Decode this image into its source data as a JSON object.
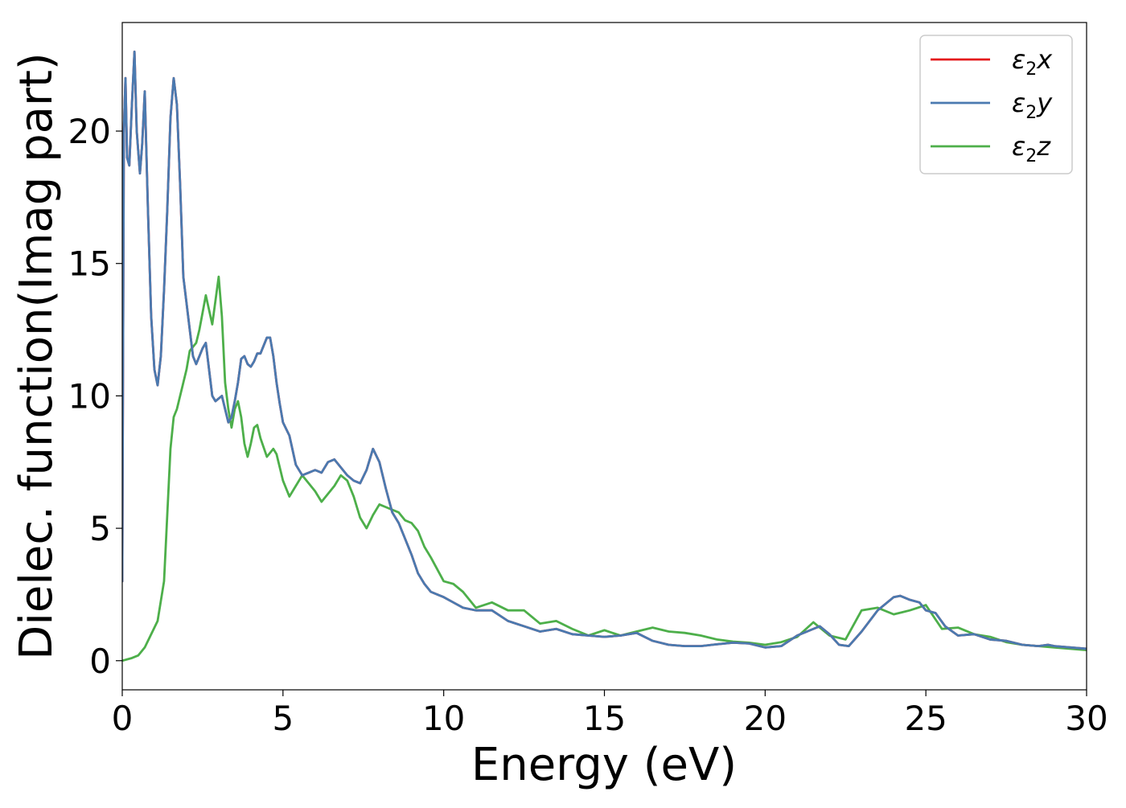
{
  "chart_data": {
    "type": "line",
    "title": "",
    "xlabel": "Energy (eV)",
    "ylabel": "Dielec. function(Imag part)",
    "xlim": [
      0,
      30
    ],
    "ylim": [
      -1.1,
      24.1
    ],
    "xticks": [
      0,
      5,
      10,
      15,
      20,
      25,
      30
    ],
    "yticks": [
      0,
      5,
      10,
      15,
      20
    ],
    "grid": false,
    "legend_position": "top-right",
    "series": [
      {
        "name": "ε₂x",
        "legend_base": "ε",
        "legend_sub": "2",
        "legend_var": "x",
        "color": "#e41a1c",
        "x": [
          0,
          0.05,
          0.1,
          0.15,
          0.22,
          0.3,
          0.38,
          0.45,
          0.55,
          0.62,
          0.7,
          0.8,
          0.9,
          1.0,
          1.1,
          1.2,
          1.3,
          1.4,
          1.5,
          1.6,
          1.7,
          1.8,
          1.9,
          2.0,
          2.1,
          2.2,
          2.3,
          2.4,
          2.5,
          2.6,
          2.7,
          2.8,
          2.9,
          3.0,
          3.1,
          3.2,
          3.3,
          3.4,
          3.5,
          3.6,
          3.7,
          3.8,
          3.9,
          4.0,
          4.1,
          4.2,
          4.3,
          4.4,
          4.5,
          4.6,
          4.7,
          4.8,
          4.9,
          5.0,
          5.2,
          5.4,
          5.6,
          5.8,
          6.0,
          6.2,
          6.4,
          6.6,
          6.8,
          7.0,
          7.2,
          7.4,
          7.6,
          7.7,
          7.8,
          8.0,
          8.2,
          8.4,
          8.6,
          8.8,
          9.0,
          9.2,
          9.4,
          9.6,
          9.8,
          10.0,
          10.3,
          10.6,
          11.0,
          11.5,
          12.0,
          12.5,
          13.0,
          13.5,
          14.0,
          14.5,
          15.0,
          15.5,
          16.0,
          16.5,
          17.0,
          17.5,
          18.0,
          18.5,
          19.0,
          19.5,
          20.0,
          20.5,
          21.0,
          21.5,
          21.7,
          22.0,
          22.3,
          22.6,
          23.0,
          23.5,
          24.0,
          24.2,
          24.5,
          24.8,
          25.0,
          25.3,
          25.6,
          26.0,
          26.5,
          27.0,
          27.5,
          28.0,
          28.5,
          28.8,
          29.0,
          29.5,
          30.0
        ],
        "values": [
          3.0,
          20.0,
          22.0,
          19.0,
          18.7,
          21.0,
          23.0,
          20.0,
          18.4,
          19.5,
          21.5,
          17.0,
          13.0,
          11.0,
          10.4,
          11.5,
          14.0,
          17.0,
          20.5,
          22.0,
          21.0,
          18.0,
          14.5,
          13.5,
          12.5,
          11.5,
          11.2,
          11.5,
          11.8,
          12.0,
          11.0,
          10.0,
          9.8,
          9.9,
          10.0,
          9.5,
          9.0,
          9.2,
          9.8,
          10.5,
          11.4,
          11.5,
          11.2,
          11.1,
          11.3,
          11.6,
          11.6,
          11.9,
          12.2,
          12.2,
          11.5,
          10.5,
          9.7,
          9.0,
          8.5,
          7.4,
          7.0,
          7.1,
          7.2,
          7.1,
          7.5,
          7.6,
          7.3,
          7.0,
          6.8,
          6.7,
          7.2,
          7.6,
          8.0,
          7.5,
          6.5,
          5.6,
          5.2,
          4.6,
          4.0,
          3.3,
          2.9,
          2.6,
          2.5,
          2.4,
          2.2,
          2.0,
          1.9,
          1.9,
          1.5,
          1.3,
          1.1,
          1.2,
          1.0,
          0.95,
          0.9,
          0.95,
          1.05,
          0.75,
          0.6,
          0.55,
          0.55,
          0.62,
          0.68,
          0.65,
          0.5,
          0.55,
          0.95,
          1.2,
          1.3,
          1.0,
          0.6,
          0.55,
          1.1,
          1.9,
          2.4,
          2.45,
          2.3,
          2.2,
          1.9,
          1.8,
          1.3,
          0.95,
          1.0,
          0.8,
          0.75,
          0.6,
          0.55,
          0.6,
          0.55,
          0.5,
          0.45
        ]
      },
      {
        "name": "ε₂y",
        "legend_base": "ε",
        "legend_sub": "2",
        "legend_var": "y",
        "color": "#4a7ab0",
        "x": [
          0,
          0.05,
          0.1,
          0.15,
          0.22,
          0.3,
          0.38,
          0.45,
          0.55,
          0.62,
          0.7,
          0.8,
          0.9,
          1.0,
          1.1,
          1.2,
          1.3,
          1.4,
          1.5,
          1.6,
          1.7,
          1.8,
          1.9,
          2.0,
          2.1,
          2.2,
          2.3,
          2.4,
          2.5,
          2.6,
          2.7,
          2.8,
          2.9,
          3.0,
          3.1,
          3.2,
          3.3,
          3.4,
          3.5,
          3.6,
          3.7,
          3.8,
          3.9,
          4.0,
          4.1,
          4.2,
          4.3,
          4.4,
          4.5,
          4.6,
          4.7,
          4.8,
          4.9,
          5.0,
          5.2,
          5.4,
          5.6,
          5.8,
          6.0,
          6.2,
          6.4,
          6.6,
          6.8,
          7.0,
          7.2,
          7.4,
          7.6,
          7.7,
          7.8,
          8.0,
          8.2,
          8.4,
          8.6,
          8.8,
          9.0,
          9.2,
          9.4,
          9.6,
          9.8,
          10.0,
          10.3,
          10.6,
          11.0,
          11.5,
          12.0,
          12.5,
          13.0,
          13.5,
          14.0,
          14.5,
          15.0,
          15.5,
          16.0,
          16.5,
          17.0,
          17.5,
          18.0,
          18.5,
          19.0,
          19.5,
          20.0,
          20.5,
          21.0,
          21.5,
          21.7,
          22.0,
          22.3,
          22.6,
          23.0,
          23.5,
          24.0,
          24.2,
          24.5,
          24.8,
          25.0,
          25.3,
          25.6,
          26.0,
          26.5,
          27.0,
          27.5,
          28.0,
          28.5,
          28.8,
          29.0,
          29.5,
          30.0
        ],
        "values": [
          3.0,
          20.0,
          22.0,
          19.0,
          18.7,
          21.0,
          23.0,
          20.0,
          18.4,
          19.5,
          21.5,
          17.0,
          13.0,
          11.0,
          10.4,
          11.5,
          14.0,
          17.0,
          20.5,
          22.0,
          21.0,
          18.0,
          14.5,
          13.5,
          12.5,
          11.5,
          11.2,
          11.5,
          11.8,
          12.0,
          11.0,
          10.0,
          9.8,
          9.9,
          10.0,
          9.5,
          9.0,
          9.2,
          9.8,
          10.5,
          11.4,
          11.5,
          11.2,
          11.1,
          11.3,
          11.6,
          11.6,
          11.9,
          12.2,
          12.2,
          11.5,
          10.5,
          9.7,
          9.0,
          8.5,
          7.4,
          7.0,
          7.1,
          7.2,
          7.1,
          7.5,
          7.6,
          7.3,
          7.0,
          6.8,
          6.7,
          7.2,
          7.6,
          8.0,
          7.5,
          6.5,
          5.6,
          5.2,
          4.6,
          4.0,
          3.3,
          2.9,
          2.6,
          2.5,
          2.4,
          2.2,
          2.0,
          1.9,
          1.9,
          1.5,
          1.3,
          1.1,
          1.2,
          1.0,
          0.95,
          0.9,
          0.95,
          1.05,
          0.75,
          0.6,
          0.55,
          0.55,
          0.62,
          0.68,
          0.65,
          0.5,
          0.55,
          0.95,
          1.2,
          1.3,
          1.0,
          0.6,
          0.55,
          1.1,
          1.9,
          2.4,
          2.45,
          2.3,
          2.2,
          1.9,
          1.8,
          1.3,
          0.95,
          1.0,
          0.8,
          0.75,
          0.6,
          0.55,
          0.6,
          0.55,
          0.5,
          0.45
        ]
      },
      {
        "name": "ε₂z",
        "legend_base": "ε",
        "legend_sub": "2",
        "legend_var": "z",
        "color": "#4daf4a",
        "x": [
          0,
          0.3,
          0.5,
          0.7,
          0.9,
          1.1,
          1.3,
          1.5,
          1.6,
          1.7,
          1.9,
          2.0,
          2.1,
          2.3,
          2.4,
          2.6,
          2.8,
          3.0,
          3.1,
          3.2,
          3.3,
          3.4,
          3.5,
          3.6,
          3.7,
          3.8,
          3.9,
          4.0,
          4.1,
          4.2,
          4.3,
          4.5,
          4.7,
          4.8,
          5.0,
          5.2,
          5.4,
          5.6,
          5.8,
          6.0,
          6.2,
          6.4,
          6.6,
          6.8,
          7.0,
          7.2,
          7.4,
          7.6,
          7.8,
          8.0,
          8.2,
          8.4,
          8.6,
          8.8,
          9.0,
          9.2,
          9.4,
          9.6,
          10.0,
          10.3,
          10.6,
          11.0,
          11.5,
          12.0,
          12.5,
          13.0,
          13.5,
          14.0,
          14.5,
          15.0,
          15.5,
          16.0,
          16.5,
          17.0,
          17.5,
          18.0,
          18.5,
          19.0,
          19.5,
          20.0,
          20.5,
          21.0,
          21.5,
          22.0,
          22.5,
          23.0,
          23.5,
          24.0,
          24.5,
          25.0,
          25.5,
          26.0,
          26.5,
          27.0,
          27.5,
          28.0,
          28.5,
          29.0,
          29.5,
          30.0
        ],
        "values": [
          0.0,
          0.1,
          0.2,
          0.5,
          1.0,
          1.5,
          3.0,
          8.0,
          9.2,
          9.5,
          10.5,
          11.0,
          11.7,
          12.0,
          12.5,
          13.8,
          12.7,
          14.5,
          13.0,
          10.5,
          9.5,
          8.8,
          9.5,
          9.8,
          9.2,
          8.2,
          7.7,
          8.2,
          8.8,
          8.9,
          8.4,
          7.7,
          8.0,
          7.8,
          6.8,
          6.2,
          6.6,
          7.0,
          6.7,
          6.4,
          6.0,
          6.3,
          6.6,
          7.0,
          6.8,
          6.2,
          5.4,
          5.0,
          5.5,
          5.9,
          5.8,
          5.7,
          5.6,
          5.3,
          5.2,
          4.9,
          4.3,
          3.9,
          3.0,
          2.9,
          2.6,
          2.0,
          2.2,
          1.9,
          1.9,
          1.4,
          1.5,
          1.2,
          0.95,
          1.15,
          0.95,
          1.1,
          1.25,
          1.1,
          1.05,
          0.95,
          0.8,
          0.72,
          0.68,
          0.6,
          0.7,
          0.9,
          1.45,
          0.95,
          0.8,
          1.9,
          2.0,
          1.75,
          1.9,
          2.1,
          1.2,
          1.25,
          1.0,
          0.9,
          0.7,
          0.6,
          0.55,
          0.5,
          0.45,
          0.4
        ]
      }
    ]
  }
}
